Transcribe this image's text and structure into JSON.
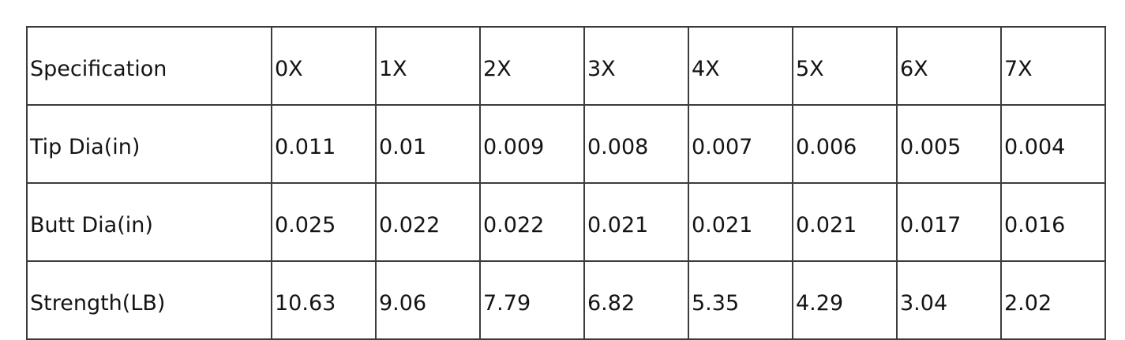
{
  "table": {
    "header": [
      "Specification",
      "0X",
      "1X",
      "2X",
      "3X",
      "4X",
      "5X",
      "6X",
      "7X"
    ],
    "rows": [
      [
        "Tip Dia(in)",
        "0.011",
        "0.01",
        "0.009",
        "0.008",
        "0.007",
        "0.006",
        "0.005",
        "0.004"
      ],
      [
        "Butt Dia(in)",
        "0.025",
        "0.022",
        "0.022",
        "0.021",
        "0.021",
        "0.021",
        "0.017",
        "0.016"
      ],
      [
        "Strength(LB)",
        "10.63",
        "9.06",
        "7.79",
        "6.82",
        "5.35",
        "4.29",
        "3.04",
        "2.02"
      ]
    ]
  },
  "colors": {
    "background": "#ffffff",
    "border": "#3c3c3c",
    "text": "#141414"
  }
}
